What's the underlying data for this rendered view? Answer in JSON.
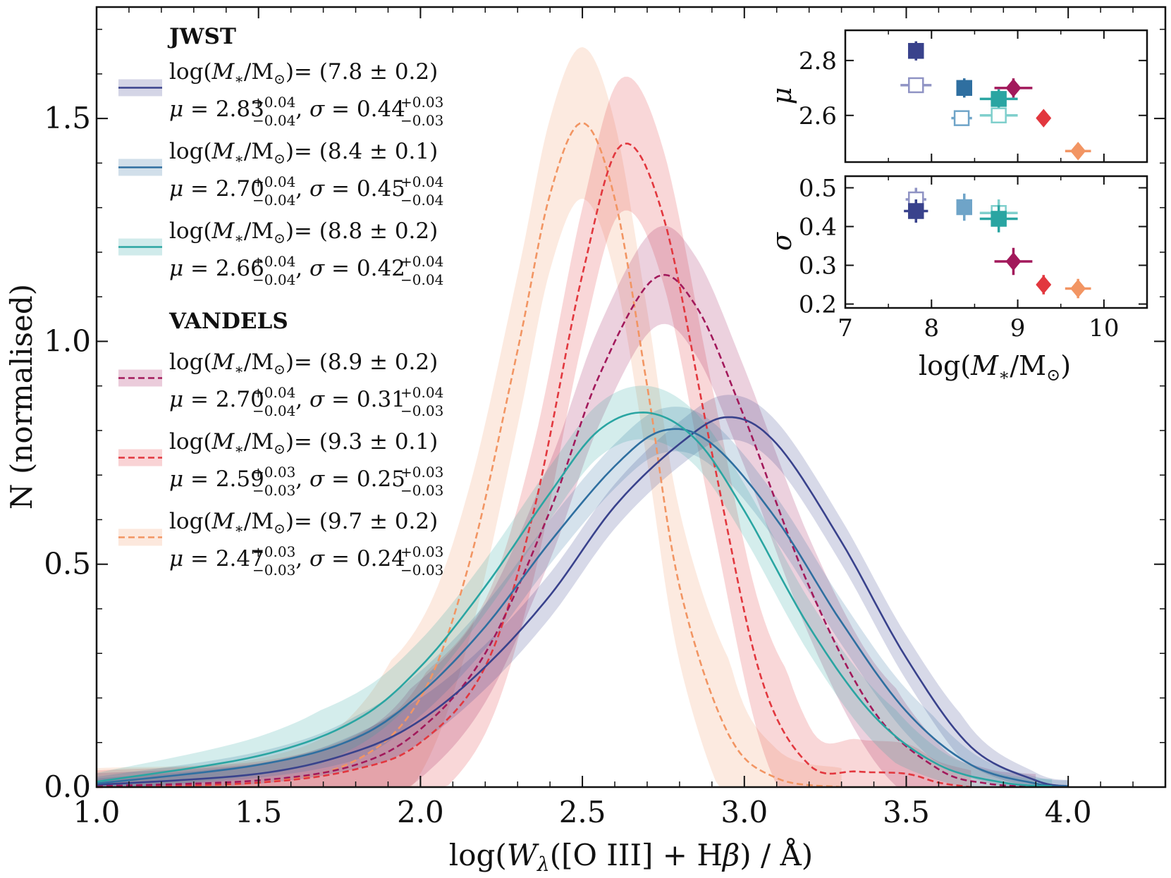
{
  "chart_data": {
    "type": "line",
    "xlabel": "log(Wλ([O III] + Hβ) / Å)",
    "ylabel": "N (normalised)",
    "xlim": [
      1.0,
      4.3
    ],
    "ylim": [
      0.0,
      1.75
    ],
    "xticks": [
      "1.0",
      "1.5",
      "2.0",
      "2.5",
      "3.0",
      "3.5",
      "4.0"
    ],
    "yticks": [
      "0.0",
      "0.5",
      "1.0",
      "1.5"
    ],
    "xtick_values": [
      1.0,
      1.5,
      2.0,
      2.5,
      3.0,
      3.5,
      4.0
    ],
    "ytick_values": [
      0.0,
      0.5,
      1.0,
      1.5
    ],
    "legend_placement": "upper-left",
    "legend_groups": [
      {
        "header": "JWST",
        "series_indices": [
          0,
          1,
          2
        ]
      },
      {
        "header": "VANDELS",
        "series_indices": [
          3,
          4,
          5
        ]
      }
    ],
    "series": [
      {
        "group": "JWST",
        "color": "#39428c",
        "dashed": false,
        "mass": "(7.8 ± 0.2)",
        "mu": "2.83",
        "mu_up": "+0.04",
        "mu_lo": "−0.04",
        "sigma": "0.44",
        "sigma_up": "+0.03",
        "sigma_lo": "−0.03",
        "x": [
          1.0,
          1.5,
          1.8,
          2.0,
          2.2,
          2.4,
          2.6,
          2.8,
          2.95,
          3.1,
          3.3,
          3.5,
          3.7,
          3.9,
          4.0
        ],
        "y": [
          0.005,
          0.03,
          0.08,
          0.15,
          0.27,
          0.43,
          0.63,
          0.77,
          0.83,
          0.77,
          0.55,
          0.29,
          0.09,
          0.015,
          0.002
        ],
        "band": 0.05
      },
      {
        "group": "JWST",
        "color": "#2f6fa0",
        "dashed": false,
        "mass": "(8.4 ± 0.1)",
        "mu": "2.70",
        "mu_up": "+0.04",
        "mu_lo": "−0.04",
        "sigma": "0.45",
        "sigma_up": "+0.04",
        "sigma_lo": "−0.04",
        "x": [
          1.0,
          1.5,
          1.8,
          2.0,
          2.2,
          2.4,
          2.6,
          2.75,
          2.9,
          3.1,
          3.3,
          3.5,
          3.7,
          3.9,
          4.0
        ],
        "y": [
          0.008,
          0.05,
          0.11,
          0.21,
          0.36,
          0.55,
          0.72,
          0.8,
          0.77,
          0.6,
          0.37,
          0.17,
          0.05,
          0.008,
          0.002
        ],
        "band": 0.05
      },
      {
        "group": "JWST",
        "color": "#2aa5a2",
        "dashed": false,
        "mass": "(8.8 ± 0.2)",
        "mu": "2.66",
        "mu_up": "+0.04",
        "mu_lo": "−0.04",
        "sigma": "0.42",
        "sigma_up": "+0.04",
        "sigma_lo": "−0.04",
        "x": [
          1.0,
          1.5,
          1.8,
          2.0,
          2.2,
          2.4,
          2.55,
          2.7,
          2.85,
          3.0,
          3.2,
          3.4,
          3.6,
          3.8,
          3.95
        ],
        "y": [
          0.012,
          0.07,
          0.15,
          0.27,
          0.45,
          0.66,
          0.8,
          0.84,
          0.78,
          0.62,
          0.36,
          0.16,
          0.05,
          0.01,
          0.002
        ],
        "band": 0.06
      },
      {
        "group": "VANDELS",
        "color": "#a2195b",
        "dashed": true,
        "mass": "(8.9 ± 0.2)",
        "mu": "2.70",
        "mu_up": "+0.04",
        "mu_lo": "−0.04",
        "sigma": "0.31",
        "sigma_up": "+0.04",
        "sigma_lo": "−0.03",
        "x": [
          1.0,
          1.5,
          1.8,
          2.0,
          2.2,
          2.4,
          2.55,
          2.72,
          2.85,
          3.0,
          3.2,
          3.4,
          3.6,
          3.75,
          3.9
        ],
        "y": [
          0.002,
          0.015,
          0.05,
          0.13,
          0.3,
          0.62,
          0.92,
          1.14,
          1.08,
          0.83,
          0.45,
          0.17,
          0.04,
          0.008,
          0.001
        ],
        "band": 0.11
      },
      {
        "group": "VANDELS",
        "color": "#e2373e",
        "dashed": true,
        "mass": "(9.3 ± 0.1)",
        "mu": "2.59",
        "mu_up": "+0.03",
        "mu_lo": "−0.03",
        "sigma": "0.25",
        "sigma_up": "+0.03",
        "sigma_lo": "−0.03",
        "x": [
          1.0,
          1.5,
          1.8,
          2.0,
          2.2,
          2.35,
          2.5,
          2.62,
          2.75,
          2.9,
          3.05,
          3.2,
          3.35,
          3.5,
          3.6,
          3.7
        ],
        "y": [
          0.0,
          0.01,
          0.04,
          0.1,
          0.27,
          0.62,
          1.15,
          1.44,
          1.28,
          0.75,
          0.25,
          0.05,
          0.035,
          0.03,
          0.01,
          0.0
        ],
        "band": 0.15
      },
      {
        "group": "VANDELS",
        "color": "#f29563",
        "dashed": true,
        "mass": "(9.7 ± 0.2)",
        "mu": "2.47",
        "mu_up": "+0.03",
        "mu_lo": "−0.03",
        "sigma": "0.24",
        "sigma_up": "+0.03",
        "sigma_lo": "−0.03",
        "x": [
          1.0,
          1.5,
          1.8,
          2.0,
          2.15,
          2.3,
          2.4,
          2.5,
          2.6,
          2.7,
          2.8,
          2.95,
          3.1,
          3.3
        ],
        "y": [
          0.0,
          0.01,
          0.06,
          0.2,
          0.5,
          0.98,
          1.33,
          1.49,
          1.32,
          0.9,
          0.45,
          0.12,
          0.02,
          0.0
        ],
        "band": 0.17
      }
    ],
    "inset_mu": {
      "ylabel": "μ",
      "ylim": [
        2.43,
        2.91
      ],
      "yticks": [
        "2.6",
        "2.8"
      ],
      "ytick_values": [
        2.6,
        2.8
      ],
      "points": [
        {
          "x": 7.82,
          "y": 2.835,
          "xerr": 0.08,
          "yerr": 0.035,
          "color": "#39428c",
          "marker": "square",
          "filled": true
        },
        {
          "x": 7.82,
          "y": 2.71,
          "xerr": 0.18,
          "yerr": 0.0,
          "color": "#8f93c4",
          "marker": "square",
          "filled": false
        },
        {
          "x": 8.38,
          "y": 2.7,
          "xerr": 0.08,
          "yerr": 0.035,
          "color": "#2f6fa0",
          "marker": "square",
          "filled": true
        },
        {
          "x": 8.35,
          "y": 2.59,
          "xerr": 0.12,
          "yerr": 0.0,
          "color": "#6fa4c8",
          "marker": "square",
          "filled": false
        },
        {
          "x": 8.78,
          "y": 2.66,
          "xerr": 0.22,
          "yerr": 0.035,
          "color": "#2aa5a2",
          "marker": "square",
          "filled": true
        },
        {
          "x": 8.78,
          "y": 2.6,
          "xerr": 0.22,
          "yerr": 0.0,
          "color": "#7fcfcc",
          "marker": "square",
          "filled": false
        },
        {
          "x": 8.95,
          "y": 2.7,
          "xerr": 0.22,
          "yerr": 0.035,
          "color": "#a2195b",
          "marker": "diamond",
          "filled": true
        },
        {
          "x": 9.3,
          "y": 2.59,
          "xerr": 0.08,
          "yerr": 0.0,
          "color": "#e2373e",
          "marker": "diamond",
          "filled": true
        },
        {
          "x": 9.7,
          "y": 2.47,
          "xerr": 0.15,
          "yerr": 0.0,
          "color": "#f29563",
          "marker": "diamond",
          "filled": true
        }
      ]
    },
    "inset_sigma": {
      "ylabel": "σ",
      "xlabel": "log(M∗/M⊙)",
      "xlim": [
        7.0,
        10.5
      ],
      "xticks": [
        "7",
        "8",
        "9",
        "10"
      ],
      "xtick_values": [
        7,
        8,
        9,
        10
      ],
      "ylim": [
        0.19,
        0.53
      ],
      "yticks": [
        "0.2",
        "0.3",
        "0.4",
        "0.5"
      ],
      "ytick_values": [
        0.2,
        0.3,
        0.4,
        0.5
      ],
      "points": [
        {
          "x": 7.82,
          "y": 0.47,
          "xerr": 0.12,
          "yerr": 0.03,
          "color": "#8f93c4",
          "marker": "square",
          "filled": false
        },
        {
          "x": 7.82,
          "y": 0.44,
          "xerr": 0.14,
          "yerr": 0.03,
          "color": "#39428c",
          "marker": "square",
          "filled": true
        },
        {
          "x": 8.38,
          "y": 0.45,
          "xerr": 0.08,
          "yerr": 0.035,
          "color": "#6fa4c8",
          "marker": "square",
          "filled": true
        },
        {
          "x": 8.78,
          "y": 0.435,
          "xerr": 0.22,
          "yerr": 0.035,
          "color": "#7fcfcc",
          "marker": "square",
          "filled": false
        },
        {
          "x": 8.78,
          "y": 0.42,
          "xerr": 0.22,
          "yerr": 0.035,
          "color": "#2aa5a2",
          "marker": "square",
          "filled": true
        },
        {
          "x": 8.95,
          "y": 0.31,
          "xerr": 0.22,
          "yerr": 0.035,
          "color": "#a2195b",
          "marker": "diamond",
          "filled": true
        },
        {
          "x": 9.3,
          "y": 0.25,
          "xerr": 0.08,
          "yerr": 0.025,
          "color": "#e2373e",
          "marker": "diamond",
          "filled": true
        },
        {
          "x": 9.7,
          "y": 0.24,
          "xerr": 0.15,
          "yerr": 0.025,
          "color": "#f29563",
          "marker": "diamond",
          "filled": true
        }
      ]
    }
  }
}
